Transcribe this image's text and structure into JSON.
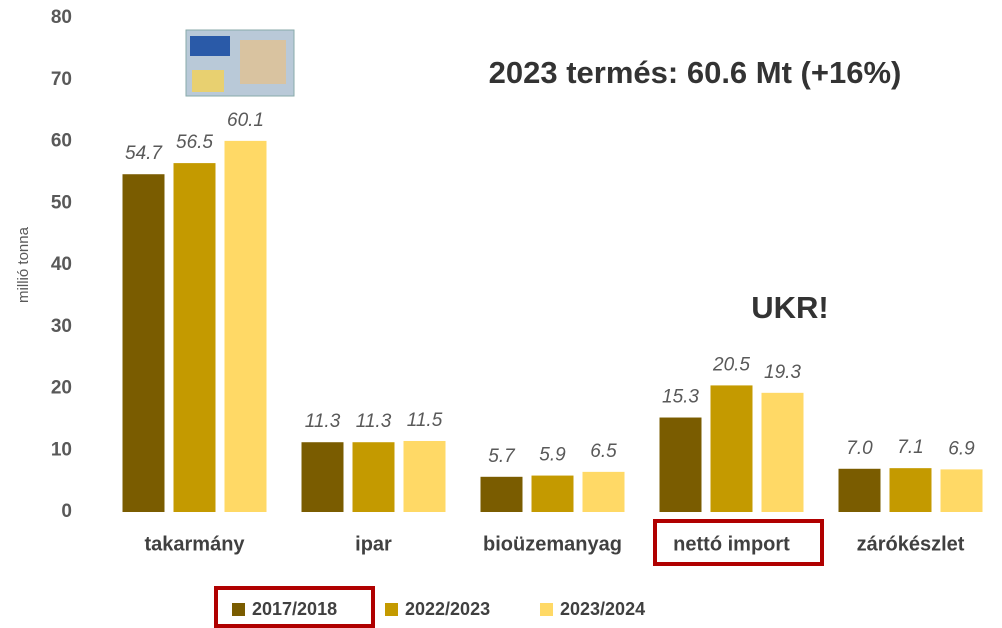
{
  "chart_data": {
    "type": "bar",
    "annotations": [
      "2023 termés: 60.6 Mt (+16%)",
      "UKR!"
    ],
    "y_label": "millió tonna",
    "categories": [
      "takarmány",
      "ipar",
      "bioüzemanyag",
      "nettó import",
      "zárókészlet"
    ],
    "series": [
      {
        "name": "2017/2018",
        "color": "#7a5c00",
        "values": [
          54.7,
          11.3,
          5.7,
          15.3,
          7.0
        ],
        "value_labels": [
          "54.7",
          "11.3",
          "5.7",
          "15.3",
          "7.0"
        ]
      },
      {
        "name": "2022/2023",
        "color": "#c49a00",
        "values": [
          56.5,
          11.3,
          5.9,
          20.5,
          7.1
        ],
        "value_labels": [
          "56.5",
          "11.3",
          "5.9",
          "20.5",
          "7.1"
        ]
      },
      {
        "name": "2023/2024",
        "color": "#ffd966",
        "values": [
          60.1,
          11.5,
          6.5,
          19.3,
          6.9
        ],
        "value_labels": [
          "60.1",
          "11.5",
          "6.5",
          "19.3",
          "6.9"
        ]
      }
    ],
    "ylim": [
      0,
      80
    ],
    "yticks": [
      0,
      10,
      20,
      30,
      40,
      50,
      60,
      70,
      80
    ],
    "grid": false,
    "legend": "bottom"
  }
}
